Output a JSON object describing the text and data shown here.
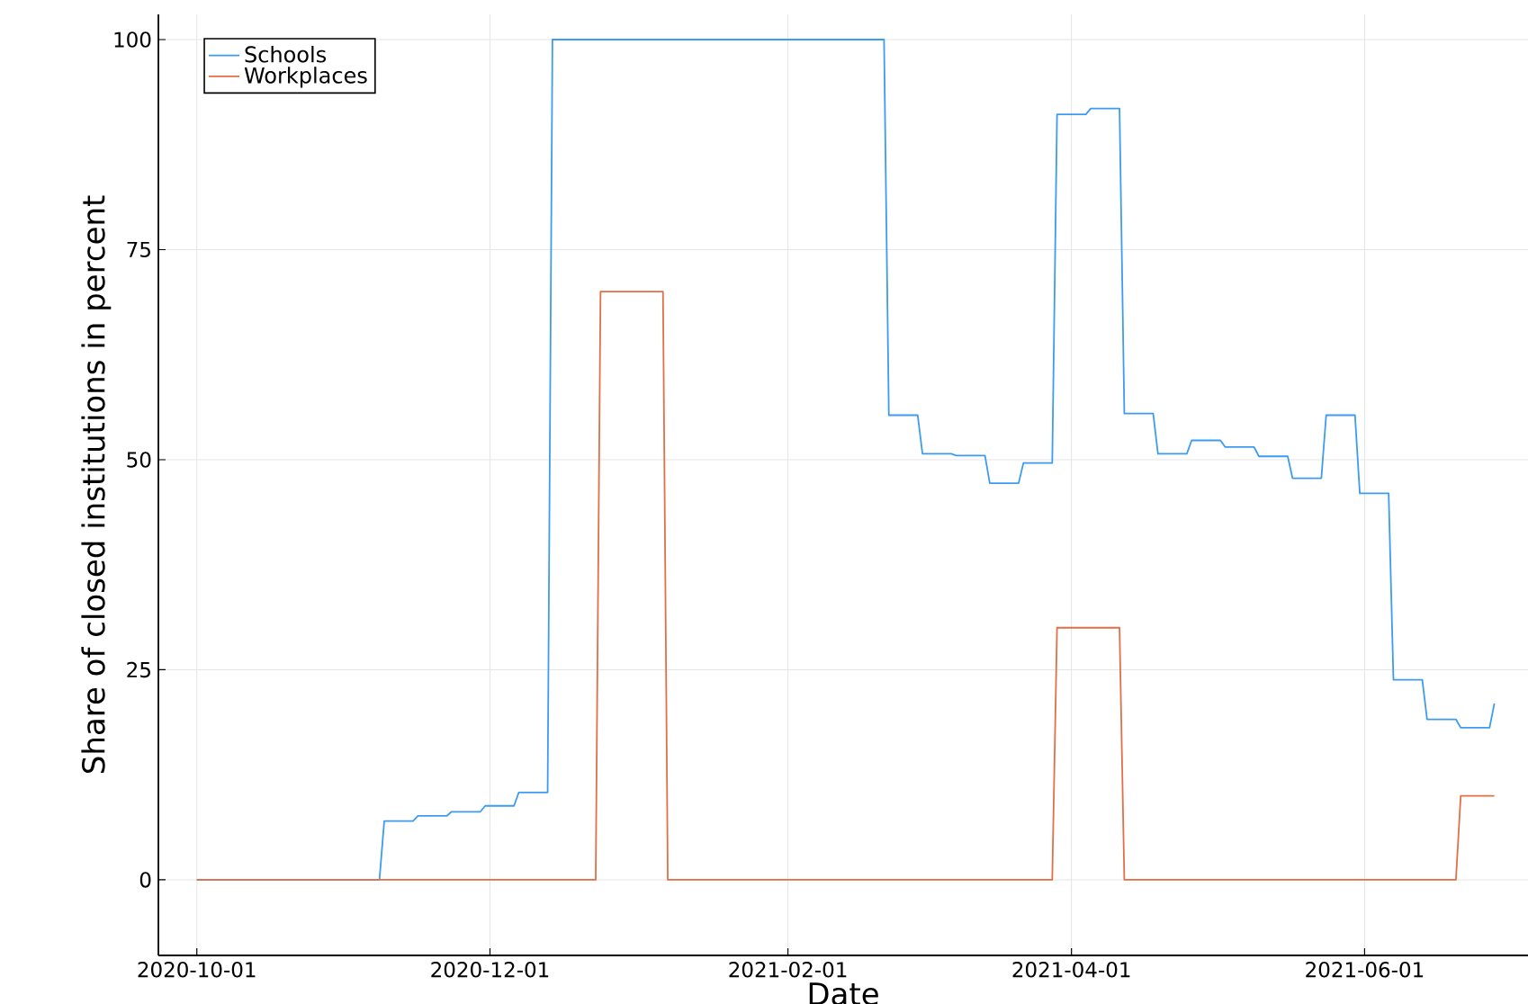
{
  "chart_data": {
    "type": "line",
    "xlabel": "Date",
    "ylabel": "Share of closed institutions in percent",
    "xlim": [
      "2020-09-23",
      "2021-07-05"
    ],
    "ylim": [
      -9,
      103
    ],
    "xticks": [
      "2020-10-01",
      "2020-12-01",
      "2021-02-01",
      "2021-04-01",
      "2021-06-01"
    ],
    "yticks": [
      0,
      25,
      50,
      75,
      100
    ],
    "grid": true,
    "legend": "top left",
    "line_style": "solid",
    "marker": "none",
    "series": [
      {
        "name": "Schools",
        "color": "#3d9bf0",
        "x": [
          "2020-10-01",
          "2020-11-08",
          "2020-11-09",
          "2020-11-15",
          "2020-11-16",
          "2020-11-22",
          "2020-11-23",
          "2020-11-29",
          "2020-11-30",
          "2020-12-06",
          "2020-12-07",
          "2020-12-13",
          "2020-12-14",
          "2021-02-21",
          "2021-02-22",
          "2021-02-28",
          "2021-03-01",
          "2021-03-07",
          "2021-03-08",
          "2021-03-14",
          "2021-03-15",
          "2021-03-21",
          "2021-03-22",
          "2021-03-28",
          "2021-03-29",
          "2021-04-04",
          "2021-04-05",
          "2021-04-11",
          "2021-04-12",
          "2021-04-18",
          "2021-04-19",
          "2021-04-25",
          "2021-04-26",
          "2021-05-02",
          "2021-05-03",
          "2021-05-09",
          "2021-05-10",
          "2021-05-16",
          "2021-05-17",
          "2021-05-23",
          "2021-05-24",
          "2021-05-30",
          "2021-05-31",
          "2021-06-06",
          "2021-06-07",
          "2021-06-13",
          "2021-06-14",
          "2021-06-20",
          "2021-06-21",
          "2021-06-27",
          "2021-06-28"
        ],
        "values": [
          0,
          0,
          7,
          7,
          7.6,
          7.6,
          8.1,
          8.1,
          8.8,
          8.8,
          10.4,
          10.4,
          100,
          100,
          55.3,
          55.3,
          50.7,
          50.7,
          50.5,
          50.5,
          47.2,
          47.2,
          49.6,
          49.6,
          91.1,
          91.1,
          91.8,
          91.8,
          55.5,
          55.5,
          50.7,
          50.7,
          52.3,
          52.3,
          51.5,
          51.5,
          50.4,
          50.4,
          47.8,
          47.8,
          55.3,
          55.3,
          46.0,
          46.0,
          23.8,
          23.8,
          19.1,
          19.1,
          18.1,
          18.1,
          21
        ]
      },
      {
        "name": "Workplaces",
        "color": "#e26f46",
        "x": [
          "2020-10-01",
          "2020-12-23",
          "2020-12-24",
          "2021-01-06",
          "2021-01-07",
          "2021-03-28",
          "2021-03-29",
          "2021-04-11",
          "2021-04-12",
          "2021-06-20",
          "2021-06-21",
          "2021-06-28"
        ],
        "values": [
          0,
          0,
          70,
          70,
          0,
          0,
          30,
          30,
          0,
          0,
          10,
          10
        ]
      }
    ]
  }
}
